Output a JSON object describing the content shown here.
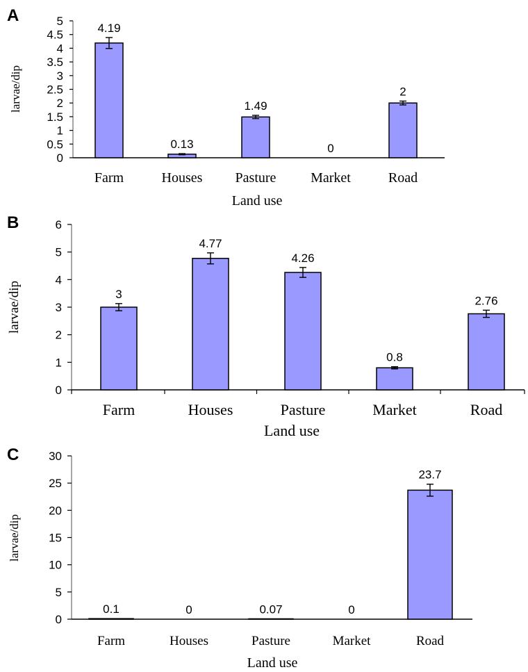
{
  "chart_data": [
    {
      "panel": "A",
      "type": "bar",
      "categories": [
        "Farm",
        "Houses",
        "Pasture",
        "Market",
        "Road"
      ],
      "values": [
        4.19,
        0.13,
        1.49,
        0,
        2
      ],
      "value_labels": [
        "4.19",
        "0.13",
        "1.49",
        "0",
        "2"
      ],
      "errors": [
        0.2,
        0.02,
        0.06,
        0,
        0.07
      ],
      "xlabel": "Land use",
      "ylabel": "larvae/dip",
      "ylim": [
        0,
        5
      ],
      "yticks": [
        "0",
        "0.5",
        "1",
        "1.5",
        "2",
        "2.5",
        "3",
        "3.5",
        "4",
        "4.5",
        "5"
      ],
      "bar_color": "#9999ff",
      "grid": false
    },
    {
      "panel": "B",
      "type": "bar",
      "categories": [
        "Farm",
        "Houses",
        "Pasture",
        "Market",
        "Road"
      ],
      "values": [
        3,
        4.77,
        4.26,
        0.8,
        2.76
      ],
      "value_labels": [
        "3",
        "4.77",
        "4.26",
        "0.8",
        "2.76"
      ],
      "errors": [
        0.13,
        0.2,
        0.18,
        0.04,
        0.13
      ],
      "xlabel": "Land use",
      "ylabel": "larvae/dip",
      "ylim": [
        0,
        6
      ],
      "yticks": [
        "0",
        "1",
        "2",
        "3",
        "4",
        "5",
        "6"
      ],
      "bar_color": "#9999ff",
      "grid": false
    },
    {
      "panel": "C",
      "type": "bar",
      "categories": [
        "Farm",
        "Houses",
        "Pasture",
        "Market",
        "Road"
      ],
      "values": [
        0.1,
        0,
        0.07,
        0,
        23.7
      ],
      "value_labels": [
        "0.1",
        "0",
        "0.07",
        "0",
        "23.7"
      ],
      "errors": [
        0,
        0,
        0,
        0,
        1.1
      ],
      "xlabel": "Land use",
      "ylabel": "larvae/dip",
      "ylim": [
        0,
        30
      ],
      "yticks": [
        "0",
        "5",
        "10",
        "15",
        "20",
        "25",
        "30"
      ],
      "bar_color": "#9999ff",
      "grid": false
    }
  ]
}
